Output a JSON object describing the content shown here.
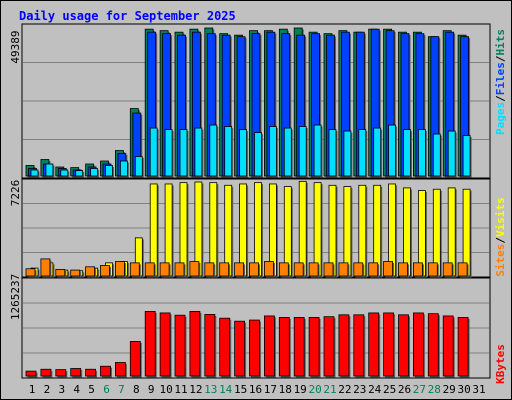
{
  "title": "Daily usage for September 2025",
  "colors": {
    "background": "#C0C0C0",
    "title": "#0000FF",
    "hits": "#00805C",
    "files": "#0040FF",
    "pages": "#00E0FF",
    "visits": "#FFFF00",
    "sites": "#FF8000",
    "kbytes": "#FF0000",
    "weekend_label": "#00805C",
    "weekday_label": "#000000"
  },
  "chart_data": [
    {
      "type": "bar",
      "panel": "hits-files-pages",
      "axis_max_label": "49389",
      "ylim": [
        0,
        49389
      ],
      "ylabel": [
        {
          "text": "Pages",
          "color": "#00E0FF"
        },
        {
          "text": "/",
          "color": "#000000"
        },
        {
          "text": "Files",
          "color": "#0040FF"
        },
        {
          "text": "/",
          "color": "#000000"
        },
        {
          "text": "Hits",
          "color": "#00805C"
        }
      ],
      "categories": [
        "1",
        "2",
        "3",
        "4",
        "5",
        "6",
        "7",
        "8",
        "9",
        "10",
        "11",
        "12",
        "13",
        "14",
        "15",
        "16",
        "17",
        "18",
        "19",
        "20",
        "21",
        "22",
        "23",
        "24",
        "25",
        "26",
        "27",
        "28",
        "29",
        "30",
        "31"
      ],
      "series": [
        {
          "name": "Hits",
          "values": [
            3500,
            5500,
            3000,
            2800,
            4000,
            5000,
            8500,
            22500,
            49000,
            48500,
            48000,
            49000,
            49389,
            47500,
            47000,
            48500,
            48500,
            49000,
            49389,
            48000,
            47500,
            48500,
            48000,
            49000,
            49000,
            48000,
            48000,
            46500,
            48500,
            47000,
            0
          ]
        },
        {
          "name": "Files",
          "values": [
            2500,
            4000,
            2500,
            2000,
            3000,
            4000,
            7500,
            21000,
            48000,
            47500,
            47000,
            48000,
            47500,
            47000,
            46500,
            47500,
            48000,
            47500,
            47000,
            47500,
            47000,
            48000,
            48000,
            49000,
            48500,
            47500,
            47500,
            46500,
            48000,
            46500,
            0
          ]
        },
        {
          "name": "Pages",
          "values": [
            2000,
            4000,
            2000,
            1800,
            2500,
            3500,
            5000,
            6500,
            16000,
            15500,
            15500,
            16000,
            17000,
            16500,
            15500,
            14500,
            16500,
            16000,
            16500,
            17000,
            15500,
            15000,
            15500,
            16000,
            17000,
            15500,
            15500,
            14000,
            15000,
            13500,
            0
          ]
        }
      ]
    },
    {
      "type": "bar",
      "panel": "visits-sites",
      "axis_max_label": "7226",
      "ylim": [
        0,
        7226
      ],
      "ylabel": [
        {
          "text": "Sites",
          "color": "#FF8000"
        },
        {
          "text": "/",
          "color": "#000000"
        },
        {
          "text": "Visits",
          "color": "#FFFF00"
        }
      ],
      "categories": [
        "1",
        "2",
        "3",
        "4",
        "5",
        "6",
        "7",
        "8",
        "9",
        "10",
        "11",
        "12",
        "13",
        "14",
        "15",
        "16",
        "17",
        "18",
        "19",
        "20",
        "21",
        "22",
        "23",
        "24",
        "25",
        "26",
        "27",
        "28",
        "29",
        "30",
        "31"
      ],
      "series": [
        {
          "name": "Visits",
          "values": [
            600,
            1000,
            450,
            400,
            600,
            1000,
            1100,
            2900,
            7000,
            7000,
            7100,
            7150,
            7100,
            6900,
            7000,
            7100,
            7000,
            6800,
            7200,
            7100,
            6900,
            6800,
            6900,
            6900,
            7000,
            6700,
            6500,
            6600,
            6700,
            6600,
            0
          ]
        },
        {
          "name": "Sites",
          "values": [
            550,
            1300,
            500,
            450,
            700,
            800,
            1100,
            1000,
            1000,
            1000,
            1000,
            1100,
            1000,
            1000,
            1000,
            1000,
            1100,
            1000,
            1000,
            1000,
            1000,
            1000,
            1000,
            1000,
            1100,
            1000,
            1000,
            1000,
            1000,
            1000,
            0
          ]
        }
      ]
    },
    {
      "type": "bar",
      "panel": "kbytes",
      "axis_max_label": "1265237",
      "ylim": [
        0,
        1265237
      ],
      "ylabel": [
        {
          "text": "KBytes",
          "color": "#FF0000"
        }
      ],
      "categories": [
        "1",
        "2",
        "3",
        "4",
        "5",
        "6",
        "7",
        "8",
        "9",
        "10",
        "11",
        "12",
        "13",
        "14",
        "15",
        "16",
        "17",
        "18",
        "19",
        "20",
        "21",
        "22",
        "23",
        "24",
        "25",
        "26",
        "27",
        "28",
        "29",
        "30",
        "31"
      ],
      "series": [
        {
          "name": "KBytes",
          "values": [
            65000,
            90000,
            85000,
            100000,
            90000,
            130000,
            180000,
            460000,
            860000,
            840000,
            810000,
            860000,
            820000,
            770000,
            730000,
            745000,
            800000,
            780000,
            780000,
            780000,
            790000,
            815000,
            815000,
            840000,
            840000,
            815000,
            840000,
            830000,
            800000,
            780000,
            0
          ]
        }
      ]
    }
  ],
  "x_labels": [
    {
      "text": "1",
      "weekend": false
    },
    {
      "text": "2",
      "weekend": false
    },
    {
      "text": "3",
      "weekend": false
    },
    {
      "text": "4",
      "weekend": false
    },
    {
      "text": "5",
      "weekend": false
    },
    {
      "text": "6",
      "weekend": true
    },
    {
      "text": "7",
      "weekend": true
    },
    {
      "text": "8",
      "weekend": false
    },
    {
      "text": "9",
      "weekend": false
    },
    {
      "text": "10",
      "weekend": false
    },
    {
      "text": "11",
      "weekend": false
    },
    {
      "text": "12",
      "weekend": false
    },
    {
      "text": "13",
      "weekend": true
    },
    {
      "text": "14",
      "weekend": true
    },
    {
      "text": "15",
      "weekend": false
    },
    {
      "text": "16",
      "weekend": false
    },
    {
      "text": "17",
      "weekend": false
    },
    {
      "text": "18",
      "weekend": false
    },
    {
      "text": "19",
      "weekend": false
    },
    {
      "text": "20",
      "weekend": true
    },
    {
      "text": "21",
      "weekend": true
    },
    {
      "text": "22",
      "weekend": false
    },
    {
      "text": "23",
      "weekend": false
    },
    {
      "text": "24",
      "weekend": false
    },
    {
      "text": "25",
      "weekend": false
    },
    {
      "text": "26",
      "weekend": false
    },
    {
      "text": "27",
      "weekend": true
    },
    {
      "text": "28",
      "weekend": true
    },
    {
      "text": "29",
      "weekend": false
    },
    {
      "text": "30",
      "weekend": false
    },
    {
      "text": "31",
      "weekend": false
    }
  ]
}
